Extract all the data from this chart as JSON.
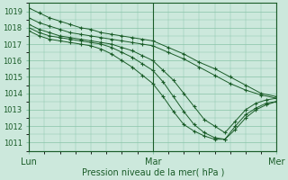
{
  "title": "Pression niveau de la mer( hPa )",
  "bg_color": "#cce8dc",
  "grid_color": "#88c4a8",
  "line_color": "#1a5c28",
  "ylim": [
    1010.5,
    1019.5
  ],
  "yticks": [
    1011,
    1012,
    1013,
    1014,
    1015,
    1016,
    1017,
    1018,
    1019
  ],
  "xlim": [
    0,
    48
  ],
  "xtick_positions": [
    0,
    24,
    48
  ],
  "xtick_labels": [
    "Lun",
    "Mar",
    "Mer"
  ],
  "series": [
    {
      "x": [
        0,
        2,
        4,
        6,
        8,
        10,
        12,
        14,
        16,
        18,
        20,
        22,
        24,
        27,
        30,
        33,
        36,
        39,
        42,
        45,
        48
      ],
      "y": [
        1019.2,
        1018.9,
        1018.6,
        1018.4,
        1018.2,
        1018.0,
        1017.9,
        1017.7,
        1017.6,
        1017.5,
        1017.4,
        1017.3,
        1017.2,
        1016.8,
        1016.4,
        1015.9,
        1015.5,
        1015.0,
        1014.5,
        1014.0,
        1013.8
      ]
    },
    {
      "x": [
        0,
        2,
        4,
        6,
        8,
        10,
        12,
        14,
        16,
        18,
        20,
        22,
        24,
        27,
        30,
        33,
        36,
        39,
        42,
        45,
        48
      ],
      "y": [
        1018.6,
        1018.3,
        1018.1,
        1017.9,
        1017.7,
        1017.6,
        1017.5,
        1017.4,
        1017.3,
        1017.2,
        1017.1,
        1017.0,
        1016.9,
        1016.5,
        1016.1,
        1015.6,
        1015.1,
        1014.6,
        1014.2,
        1013.9,
        1013.7
      ]
    },
    {
      "x": [
        0,
        2,
        4,
        6,
        8,
        10,
        12,
        14,
        16,
        18,
        20,
        22,
        24,
        26,
        28,
        30,
        32,
        34,
        36,
        38,
        40,
        42,
        44,
        46,
        48
      ],
      "y": [
        1018.2,
        1017.9,
        1017.7,
        1017.5,
        1017.4,
        1017.3,
        1017.2,
        1017.1,
        1017.0,
        1016.8,
        1016.6,
        1016.3,
        1016.0,
        1015.4,
        1014.8,
        1014.0,
        1013.2,
        1012.4,
        1012.0,
        1011.6,
        1012.3,
        1013.0,
        1013.4,
        1013.6,
        1013.7
      ]
    },
    {
      "x": [
        0,
        2,
        4,
        6,
        8,
        10,
        12,
        14,
        16,
        18,
        20,
        22,
        24,
        26,
        28,
        30,
        32,
        34,
        36,
        38,
        40,
        42,
        44,
        46,
        48
      ],
      "y": [
        1018.0,
        1017.7,
        1017.5,
        1017.4,
        1017.3,
        1017.2,
        1017.1,
        1017.0,
        1016.8,
        1016.5,
        1016.2,
        1015.8,
        1015.4,
        1014.7,
        1013.8,
        1012.9,
        1012.1,
        1011.6,
        1011.3,
        1011.2,
        1011.8,
        1012.5,
        1013.0,
        1013.3,
        1013.5
      ]
    },
    {
      "x": [
        0,
        2,
        4,
        6,
        8,
        10,
        12,
        14,
        16,
        18,
        20,
        22,
        24,
        26,
        28,
        30,
        32,
        34,
        36,
        38,
        40,
        42,
        44,
        46,
        48
      ],
      "y": [
        1017.8,
        1017.5,
        1017.3,
        1017.2,
        1017.1,
        1017.0,
        1016.9,
        1016.7,
        1016.4,
        1016.0,
        1015.6,
        1015.1,
        1014.6,
        1013.8,
        1012.9,
        1012.1,
        1011.7,
        1011.4,
        1011.2,
        1011.2,
        1012.0,
        1012.7,
        1013.1,
        1013.4,
        1013.5
      ]
    }
  ]
}
